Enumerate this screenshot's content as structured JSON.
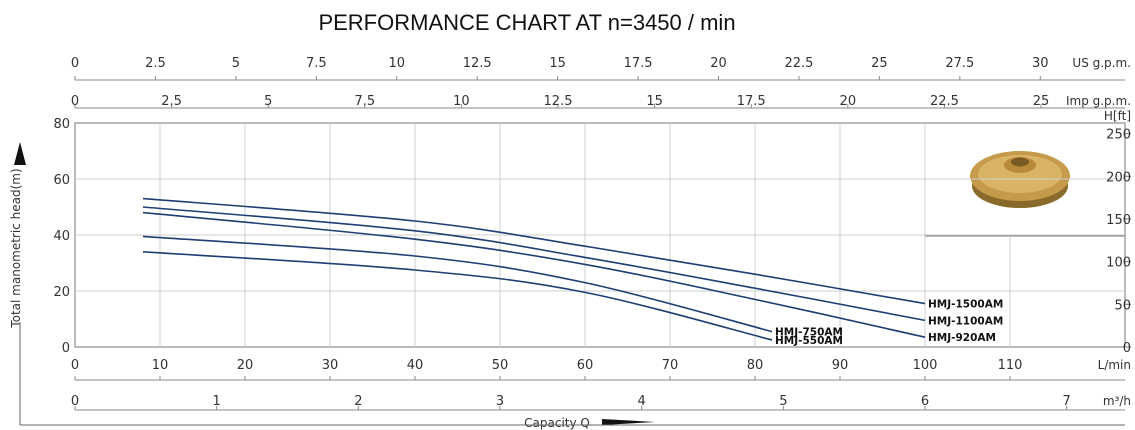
{
  "chart_data": {
    "type": "line",
    "title": "PERFORMANCE CHART AT n=3450 / min",
    "ylabel": "Total manometric head(m)",
    "ylabel_right": "H[ft]",
    "xlabel": "Capacity Q",
    "ylim": [
      0,
      80
    ],
    "yticks": [
      0,
      20,
      40,
      60,
      80
    ],
    "y_right": {
      "unit": "H[ft]",
      "ticks": [
        0,
        50,
        100,
        150,
        200,
        250
      ]
    },
    "xlim_lmin": [
      0,
      120
    ],
    "x_axes": [
      {
        "unit": "US g.p.m.",
        "ticks": [
          "0",
          "2.5",
          "5",
          "7.5",
          "10",
          "12.5",
          "15",
          "17.5",
          "20",
          "22.5",
          "25",
          "27.5",
          "30"
        ]
      },
      {
        "unit": "Imp g.p.m.",
        "ticks": [
          "0",
          "2.5",
          "5",
          "7.5",
          "10",
          "12.5",
          "15",
          "17.5",
          "20",
          "22.5",
          "25"
        ]
      },
      {
        "unit": "L/min",
        "ticks": [
          "0",
          "10",
          "20",
          "30",
          "40",
          "50",
          "60",
          "70",
          "80",
          "90",
          "100",
          "110"
        ]
      },
      {
        "unit": "m³/h",
        "ticks": [
          "0",
          "1",
          "2",
          "3",
          "4",
          "5",
          "6",
          "7"
        ]
      }
    ],
    "grid": true,
    "series": [
      {
        "name": "HMJ-1500AM",
        "x": [
          8,
          40,
          60,
          80,
          100
        ],
        "values": [
          53,
          45,
          36,
          26,
          15.5
        ]
      },
      {
        "name": "HMJ-1100AM",
        "x": [
          8,
          40,
          60,
          80,
          100
        ],
        "values": [
          50,
          41.5,
          32,
          21,
          9.5
        ]
      },
      {
        "name": "HMJ-920AM",
        "x": [
          8,
          40,
          60,
          80,
          100
        ],
        "values": [
          48,
          38.5,
          29.5,
          17,
          3.5
        ]
      },
      {
        "name": "HMJ-750AM",
        "x": [
          8,
          40,
          60,
          82
        ],
        "values": [
          39.5,
          32.5,
          23,
          5.5
        ]
      },
      {
        "name": "HMJ-550AM",
        "x": [
          8,
          40,
          60,
          82
        ],
        "values": [
          34,
          27.5,
          19.5,
          2.5
        ]
      }
    ],
    "line_color": "#1d3f73"
  }
}
